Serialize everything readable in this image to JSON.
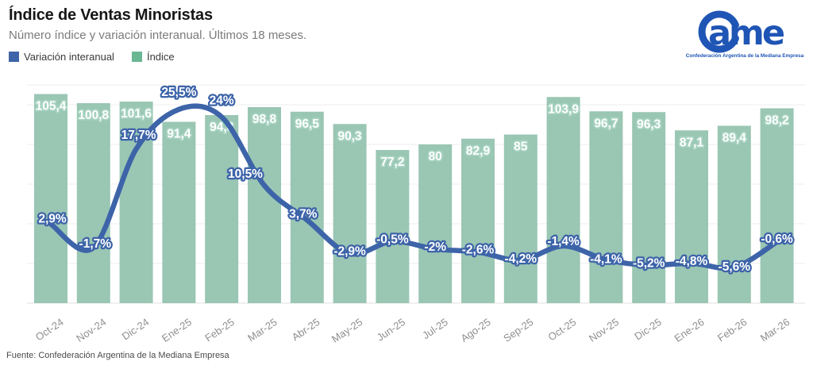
{
  "header": {
    "title": "Índice de Ventas Minoristas",
    "subtitle": "Número índice y variación interanual. Últimos 18 meses."
  },
  "legend": {
    "items": [
      {
        "label": "Variación interanual",
        "color": "#3d64a8"
      },
      {
        "label": "Índice",
        "color": "#6ab794"
      }
    ]
  },
  "logo": {
    "brand": "CAME",
    "wordmark_text": "ame",
    "tagline": "Confederación Argentina de la Mediana Empresa",
    "color": "#1f55b5"
  },
  "footer": {
    "source": "Fuente: Confederación Argentina de la Mediana Empresa"
  },
  "chart_data": {
    "type": "combo",
    "categories": [
      "Oct-24",
      "Nov-24",
      "Dic-24",
      "Ene-25",
      "Feb-25",
      "Mar-25",
      "Abr-25",
      "May-25",
      "Jun-25",
      "Jul-25",
      "Ago-25",
      "Sep-25",
      "Oct-25",
      "Nov-25",
      "Dic-25",
      "Ene-26",
      "Feb-26",
      "Mar-26"
    ],
    "series": [
      {
        "name": "Índice",
        "type": "bar",
        "color": "#9ac6b4",
        "label_halo_color": "#a8d3c2",
        "values": [
          105.4,
          100.8,
          101.6,
          91.4,
          94.8,
          98.8,
          96.5,
          90.3,
          77.2,
          80,
          82.9,
          85,
          103.9,
          96.7,
          96.3,
          87.1,
          89.4,
          98.2
        ],
        "labels": [
          "105,4",
          "100,8",
          "101,6",
          "91,4",
          "94,8",
          "98,8",
          "96,5",
          "90,3",
          "77,2",
          "80",
          "82,9",
          "85",
          "103,9",
          "96,7",
          "96,3",
          "87,1",
          "89,4",
          "98,2"
        ]
      },
      {
        "name": "Variación interanual",
        "type": "line",
        "color": "#3d64a8",
        "values": [
          2.9,
          -1.7,
          17.7,
          25.5,
          24,
          10.5,
          3.7,
          -2.9,
          -0.5,
          -2,
          -2.6,
          -4.2,
          -1.4,
          -4.1,
          -5.2,
          -4.8,
          -5.6,
          -0.6
        ],
        "labels": [
          "2,9%",
          "-1,7%",
          "17,7%",
          "25,5%",
          "24%",
          "10,5%",
          "3,7%",
          "-2,9%",
          "-0,5%",
          "-2%",
          "-2,6%",
          "-4,2%",
          "-1,4%",
          "-4,1%",
          "-5,2%",
          "-4,8%",
          "-5,6%",
          "-0,6%"
        ]
      }
    ],
    "axes": {
      "y_left_hidden": true,
      "bar_axis_range": [
        0,
        110
      ],
      "grid": "horizontal",
      "x_labels_rotated": true
    },
    "legend_position": "top-left"
  }
}
